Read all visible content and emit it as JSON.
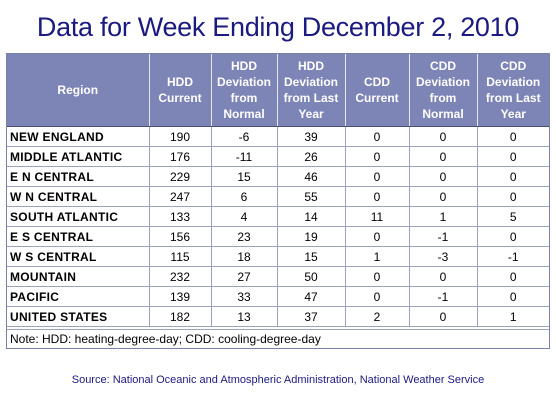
{
  "title": "Data for Week Ending December 2, 2010",
  "headers": [
    "Region",
    "HDD Current",
    "HDD Deviation from Normal",
    "HDD Deviation from Last Year",
    "CDD Current",
    "CDD Deviation from Normal",
    "CDD Deviation from Last Year"
  ],
  "rows": [
    [
      "NEW ENGLAND",
      "190",
      "-6",
      "39",
      "0",
      "0",
      "0"
    ],
    [
      "MIDDLE ATLANTIC",
      "176",
      "-11",
      "26",
      "0",
      "0",
      "0"
    ],
    [
      "E N CENTRAL",
      "229",
      "15",
      "46",
      "0",
      "0",
      "0"
    ],
    [
      "W N CENTRAL",
      "247",
      "6",
      "55",
      "0",
      "0",
      "0"
    ],
    [
      "SOUTH ATLANTIC",
      "133",
      "4",
      "14",
      "11",
      "1",
      "5"
    ],
    [
      "E S CENTRAL",
      "156",
      "23",
      "19",
      "0",
      "-1",
      "0"
    ],
    [
      "W S CENTRAL",
      "115",
      "18",
      "15",
      "1",
      "-3",
      "-1"
    ],
    [
      "MOUNTAIN",
      "232",
      "27",
      "50",
      "0",
      "0",
      "0"
    ],
    [
      "PACIFIC",
      "139",
      "33",
      "47",
      "0",
      "-1",
      "0"
    ],
    [
      "UNITED STATES",
      "182",
      "13",
      "37",
      "2",
      "0",
      "1"
    ]
  ],
  "note": "Note: HDD: heating-degree-day; CDD: cooling-degree-day",
  "source": "Source:  National Oceanic and Atmospheric Administration, National Weather Service"
}
